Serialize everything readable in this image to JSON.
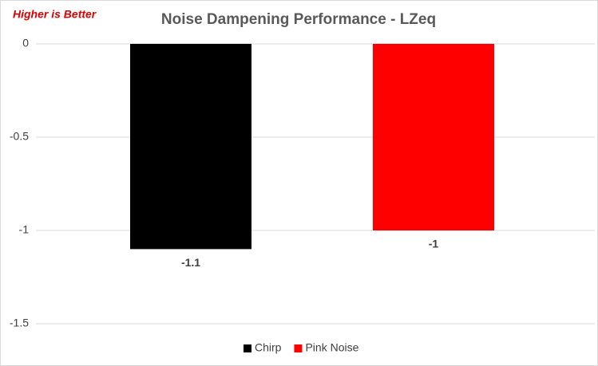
{
  "chart_data": {
    "type": "bar",
    "title": "Noise Dampening Performance - LZeq",
    "annotation": "Higher is Better",
    "categories": [
      null,
      null
    ],
    "series": [
      {
        "name": "Chirp",
        "color": "#000000",
        "values": [
          -1.1,
          null
        ]
      },
      {
        "name": "Pink Noise",
        "color": "#ff0000",
        "values": [
          null,
          -1
        ]
      }
    ],
    "ylim": [
      -1.5,
      0
    ],
    "yticks": [
      0,
      -0.5,
      -1,
      -1.5
    ],
    "grid": true,
    "legend": "bottom"
  }
}
